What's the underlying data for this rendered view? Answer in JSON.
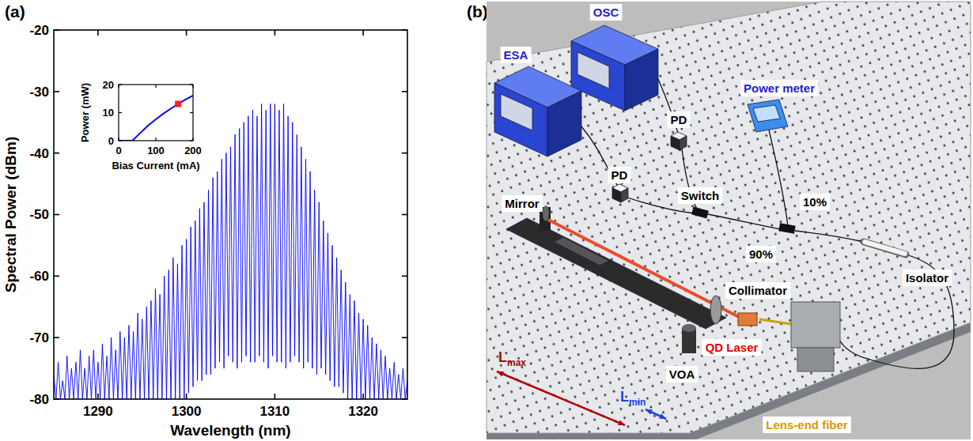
{
  "panels": [
    "(a)",
    "(b)"
  ],
  "chart_data": [
    {
      "type": "line",
      "x_label": "Wavelength (nm)",
      "y_label": "Spectral Power (dBm)",
      "x": [
        1285,
        1285.25,
        1285.5,
        1285.75,
        1286,
        1286.25,
        1286.5,
        1286.75,
        1287,
        1287.25,
        1287.5,
        1287.75,
        1288,
        1288.25,
        1288.5,
        1288.75,
        1289,
        1289.25,
        1289.5,
        1289.75,
        1290,
        1290.25,
        1290.5,
        1290.75,
        1291,
        1291.25,
        1291.5,
        1291.75,
        1292,
        1292.25,
        1292.5,
        1292.75,
        1293,
        1293.25,
        1293.5,
        1293.75,
        1294,
        1294.25,
        1294.5,
        1294.75,
        1295,
        1295.25,
        1295.5,
        1295.75,
        1296,
        1296.25,
        1296.5,
        1296.75,
        1297,
        1297.25,
        1297.5,
        1297.75,
        1298,
        1298.25,
        1298.5,
        1298.75,
        1299,
        1299.25,
        1299.5,
        1299.75,
        1300,
        1300.25,
        1300.5,
        1300.75,
        1301,
        1301.25,
        1301.5,
        1301.75,
        1302,
        1302.25,
        1302.5,
        1302.75,
        1303,
        1303.25,
        1303.5,
        1303.75,
        1304,
        1304.25,
        1304.5,
        1304.75,
        1305,
        1305.25,
        1305.5,
        1305.75,
        1306,
        1306.25,
        1306.5,
        1306.75,
        1307,
        1307.25,
        1307.5,
        1307.75,
        1308,
        1308.25,
        1308.5,
        1308.75,
        1309,
        1309.25,
        1309.5,
        1309.75,
        1310,
        1310.25,
        1310.5,
        1310.75,
        1311,
        1311.25,
        1311.5,
        1311.75,
        1312,
        1312.25,
        1312.5,
        1312.75,
        1313,
        1313.25,
        1313.5,
        1313.75,
        1314,
        1314.25,
        1314.5,
        1314.75,
        1315,
        1315.25,
        1315.5,
        1315.75,
        1316,
        1316.25,
        1316.5,
        1316.75,
        1317,
        1317.25,
        1317.5,
        1317.75,
        1318,
        1318.25,
        1318.5,
        1318.75,
        1319,
        1319.25,
        1319.5,
        1319.75,
        1320,
        1320.25,
        1320.5,
        1320.75,
        1321,
        1321.25,
        1321.5,
        1321.75,
        1322,
        1322.25,
        1322.5,
        1322.75,
        1323,
        1323.25,
        1323.5,
        1323.75,
        1324,
        1324.25,
        1324.5,
        1324.75,
        1325
      ],
      "series": [
        {
          "color": "#0000ff",
          "values": [
            -76,
            -80,
            -74,
            -80,
            -77,
            -80,
            -73,
            -80,
            -75,
            -80,
            -74,
            -80,
            -72,
            -80,
            -75,
            -80,
            -73,
            -80,
            -72,
            -80,
            -74,
            -80,
            -71,
            -80,
            -73,
            -80,
            -70,
            -80,
            -72,
            -80,
            -69,
            -80,
            -70,
            -80,
            -68,
            -80,
            -69,
            -80,
            -66,
            -80,
            -67,
            -80,
            -65,
            -80,
            -64,
            -80,
            -62,
            -80,
            -63,
            -80,
            -60,
            -80,
            -59,
            -80,
            -57,
            -80,
            -58,
            -80,
            -55,
            -80,
            -54,
            -79,
            -52,
            -78,
            -51,
            -77,
            -49,
            -77,
            -48,
            -76,
            -46,
            -76,
            -44,
            -75,
            -43,
            -74,
            -41,
            -75,
            -40,
            -73,
            -39,
            -74,
            -37,
            -75,
            -36,
            -74,
            -35,
            -73,
            -34,
            -74,
            -33,
            -74,
            -34,
            -73,
            -32,
            -74,
            -33,
            -75,
            -32,
            -73,
            -32,
            -74,
            -33,
            -74,
            -32,
            -75,
            -34,
            -74,
            -35,
            -73,
            -37,
            -74,
            -39,
            -75,
            -41,
            -74,
            -43,
            -75,
            -46,
            -76,
            -48,
            -75,
            -51,
            -76,
            -53,
            -77,
            -55,
            -78,
            -57,
            -78,
            -59,
            -79,
            -61,
            -80,
            -63,
            -80,
            -64,
            -80,
            -66,
            -80,
            -67,
            -80,
            -68,
            -80,
            -70,
            -80,
            -71,
            -80,
            -72,
            -80,
            -73,
            -80,
            -75,
            -80,
            -74,
            -80,
            -76,
            -80,
            -75,
            -80,
            -77
          ]
        }
      ],
      "xlim": [
        1285,
        1325
      ],
      "ylim": [
        -80,
        -20
      ],
      "xticks": [
        1290,
        1300,
        1310,
        1320
      ],
      "yticks": [
        -80,
        -70,
        -60,
        -50,
        -40,
        -30,
        -20
      ],
      "grid": false
    },
    {
      "type": "line",
      "x_label": "Bias Current (mA)",
      "y_label": "Power (mW)",
      "series": [
        {
          "type": "line",
          "color": "#0000ff",
          "x": [
            0,
            37,
            60,
            80,
            100,
            120,
            140,
            160,
            180,
            200
          ],
          "values": [
            0,
            0,
            3,
            5.5,
            7.6,
            9.6,
            11.4,
            13.1,
            14.7,
            16.1
          ]
        },
        {
          "type": "scatter",
          "color": "#ff2020",
          "marker": "square",
          "x": [
            160
          ],
          "values": [
            13.1
          ]
        }
      ],
      "xlim": [
        0,
        200
      ],
      "ylim": [
        0,
        20
      ],
      "xticks": [
        0,
        100,
        200
      ],
      "yticks": [
        0,
        10,
        20
      ],
      "grid": false
    }
  ],
  "diagram": {
    "instruments": [
      "ESA",
      "OSC",
      "Power meter"
    ],
    "components": [
      "PD",
      "PD",
      "Mirror",
      "Switch",
      "10%",
      "90%",
      "Isolator",
      "Collimator",
      "VOA"
    ],
    "laser": "QD Laser",
    "fiber": "Lens-end fiber",
    "lengths": [
      {
        "symbol": "L",
        "subscript": "max"
      },
      {
        "symbol": "L",
        "subscript": "min"
      }
    ]
  }
}
